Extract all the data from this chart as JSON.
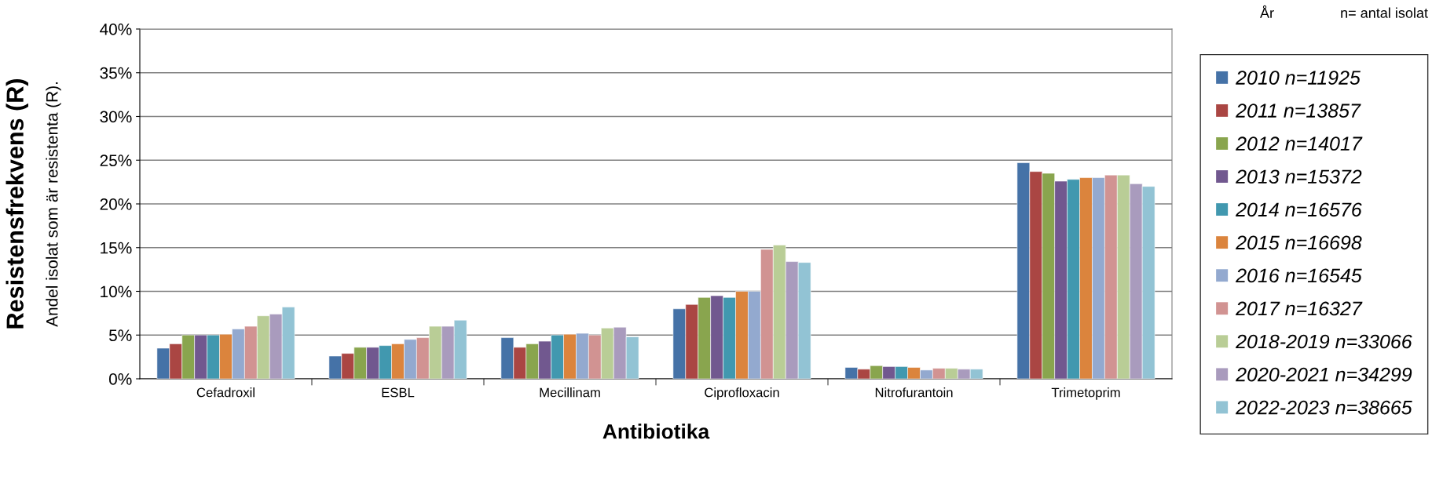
{
  "chart_data": {
    "type": "bar",
    "xlabel": "Antibiotika",
    "ylabel": "Resistensfrekvens (R)",
    "legend_title": "År",
    "annotations": [
      "Andel isolat som är resistenta (R).",
      "n= antal isolat"
    ],
    "categories": [
      "Cefadroxil",
      "ESBL",
      "Mecillinam",
      "Ciprofloxacin",
      "Nitrofurantoin",
      "Trimetoprim"
    ],
    "ylim": [
      0,
      40
    ],
    "yticks": [
      {
        "value": 0,
        "label": "0%"
      },
      {
        "value": 5,
        "label": "5%"
      },
      {
        "value": 10,
        "label": "10%"
      },
      {
        "value": 15,
        "label": "15%"
      },
      {
        "value": 20,
        "label": "20%"
      },
      {
        "value": 25,
        "label": "25%"
      },
      {
        "value": 30,
        "label": "30%"
      },
      {
        "value": 35,
        "label": "35%"
      },
      {
        "value": 40,
        "label": "40%"
      }
    ],
    "grid": "y",
    "legend": "right",
    "series": [
      {
        "name": "2010 n=11925",
        "color": "#4572a7",
        "values": [
          3.5,
          2.6,
          4.7,
          8.0,
          1.3,
          24.7
        ]
      },
      {
        "name": "2011 n=13857",
        "color": "#aa4643",
        "values": [
          4.0,
          2.9,
          3.6,
          8.5,
          1.1,
          23.7
        ]
      },
      {
        "name": "2012 n=14017",
        "color": "#89a54e",
        "values": [
          5.0,
          3.6,
          4.0,
          9.3,
          1.5,
          23.5
        ]
      },
      {
        "name": "2013 n=15372",
        "color": "#71588f",
        "values": [
          5.0,
          3.6,
          4.3,
          9.5,
          1.4,
          22.6
        ]
      },
      {
        "name": "2014 n=16576",
        "color": "#4198af",
        "values": [
          5.0,
          3.8,
          5.0,
          9.3,
          1.4,
          22.8
        ]
      },
      {
        "name": "2015 n=16698",
        "color": "#db843d",
        "values": [
          5.1,
          4.0,
          5.1,
          10.0,
          1.3,
          23.0
        ]
      },
      {
        "name": "2016 n=16545",
        "color": "#93a9cf",
        "values": [
          5.7,
          4.5,
          5.2,
          10.0,
          1.0,
          23.0
        ]
      },
      {
        "name": "2017 n=16327",
        "color": "#d19392",
        "values": [
          6.0,
          4.7,
          5.0,
          14.8,
          1.2,
          23.3
        ]
      },
      {
        "name": "2018-2019 n=33066",
        "color": "#b9cd96",
        "values": [
          7.2,
          6.0,
          5.8,
          15.3,
          1.2,
          23.3
        ]
      },
      {
        "name": "2020-2021 n=34299",
        "color": "#a99bbd",
        "values": [
          7.4,
          6.0,
          5.9,
          13.4,
          1.1,
          22.3
        ]
      },
      {
        "name": "2022-2023 n=38665",
        "color": "#92c3d4",
        "values": [
          8.2,
          6.7,
          4.8,
          13.3,
          1.1,
          22.0
        ]
      }
    ]
  }
}
